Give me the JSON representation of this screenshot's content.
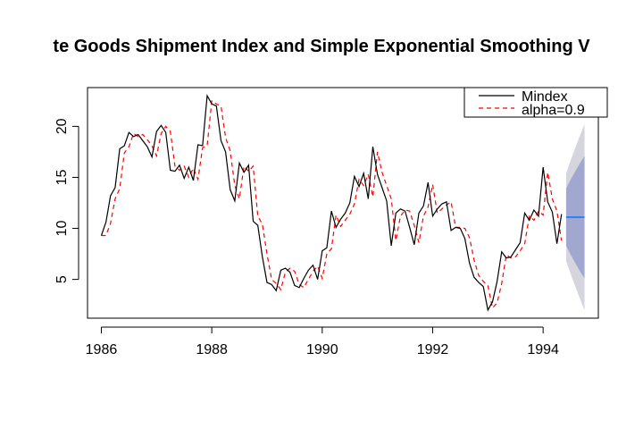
{
  "chart_data": {
    "type": "line",
    "title": "te Goods Shipment Index and Simple Exponential Smoothing V",
    "xlabel": "",
    "ylabel": "",
    "xlim": [
      1985.75,
      1995.0
    ],
    "ylim": [
      1.2,
      23.8
    ],
    "x_ticks": [
      1986,
      1988,
      1990,
      1992,
      1994
    ],
    "y_ticks": [
      5,
      10,
      15,
      20
    ],
    "x_start": 1986.0,
    "x_step": 0.0833333,
    "grid": false,
    "legend": {
      "placement": "top-right",
      "entries": [
        "Mindex",
        "alpha=0.9"
      ]
    },
    "colors": {
      "observed": "#000000",
      "fitted": "#ff0000",
      "forecast": "#2b83f6",
      "pi80": "#a2a7d0",
      "pi95": "#d5d5dd"
    },
    "series": [
      {
        "name": "Mindex",
        "values": [
          9.3,
          10.6,
          13.2,
          14.0,
          17.8,
          18.1,
          19.4,
          19.0,
          19.2,
          18.6,
          18.0,
          17.0,
          19.5,
          20.1,
          19.4,
          15.7,
          15.6,
          16.2,
          14.9,
          16.0,
          14.7,
          18.2,
          18.1,
          23.0,
          22.2,
          22.0,
          18.6,
          17.5,
          13.8,
          12.7,
          16.4,
          15.5,
          16.2,
          10.7,
          10.3,
          7.2,
          4.7,
          4.5,
          3.9,
          5.9,
          6.1,
          5.7,
          4.4,
          4.2,
          5.1,
          5.9,
          6.4,
          5.0,
          7.8,
          8.1,
          11.7,
          10.1,
          10.9,
          11.5,
          12.5,
          15.1,
          14.1,
          15.4,
          12.9,
          18.0,
          15.3,
          14.0,
          12.7,
          8.3,
          11.5,
          11.9,
          11.7,
          10.1,
          8.4,
          11.5,
          12.2,
          14.5,
          11.2,
          11.9,
          12.4,
          12.6,
          9.8,
          10.1,
          10.0,
          9.0,
          6.6,
          5.2,
          4.7,
          4.3,
          2.0,
          2.8,
          4.8,
          7.7,
          7.1,
          7.2,
          7.9,
          8.6,
          11.5,
          10.8,
          11.8,
          11.2,
          16.0,
          12.6,
          11.6,
          8.5,
          11.4
        ]
      },
      {
        "name": "alpha=0.9",
        "values": [
          9.3,
          9.3,
          10.5,
          12.9,
          13.9,
          17.4,
          18.0,
          19.3,
          19.0,
          19.2,
          18.7,
          18.1,
          17.1,
          19.3,
          20.0,
          19.5,
          16.1,
          15.7,
          16.1,
          15.0,
          15.9,
          14.8,
          17.9,
          18.1,
          22.5,
          22.2,
          22.0,
          18.9,
          17.6,
          14.2,
          12.9,
          16.1,
          15.6,
          16.1,
          11.2,
          10.4,
          7.5,
          5.0,
          4.6,
          4.0,
          5.7,
          6.1,
          5.8,
          4.5,
          4.2,
          5.0,
          5.8,
          6.3,
          5.1,
          7.5,
          8.0,
          11.3,
          10.2,
          10.8,
          11.4,
          12.4,
          14.8,
          14.2,
          15.3,
          13.1,
          17.5,
          15.5,
          14.2,
          12.9,
          8.8,
          11.2,
          11.8,
          11.7,
          10.3,
          8.6,
          11.2,
          12.1,
          14.3,
          11.5,
          11.9,
          12.3,
          12.6,
          10.1,
          10.1,
          10.0,
          9.1,
          6.9,
          5.4,
          4.8,
          4.4,
          2.2,
          2.7,
          4.6,
          7.4,
          7.1,
          7.2,
          7.8,
          8.5,
          11.2,
          10.8,
          11.7,
          11.3,
          15.5,
          12.9,
          11.7,
          8.8
        ]
      }
    ],
    "forecast": {
      "x": [
        1994.417,
        1994.5,
        1994.583,
        1994.667,
        1994.75
      ],
      "mean": [
        11.1,
        11.1,
        11.1,
        11.1,
        11.1
      ],
      "lo80": [
        8.3,
        7.4,
        6.6,
        5.8,
        5.1
      ],
      "hi80": [
        13.9,
        14.8,
        15.6,
        16.4,
        17.1
      ],
      "lo95": [
        6.8,
        5.5,
        4.3,
        3.1,
        2.0
      ],
      "hi95": [
        15.4,
        16.7,
        17.9,
        19.1,
        20.2
      ]
    }
  }
}
